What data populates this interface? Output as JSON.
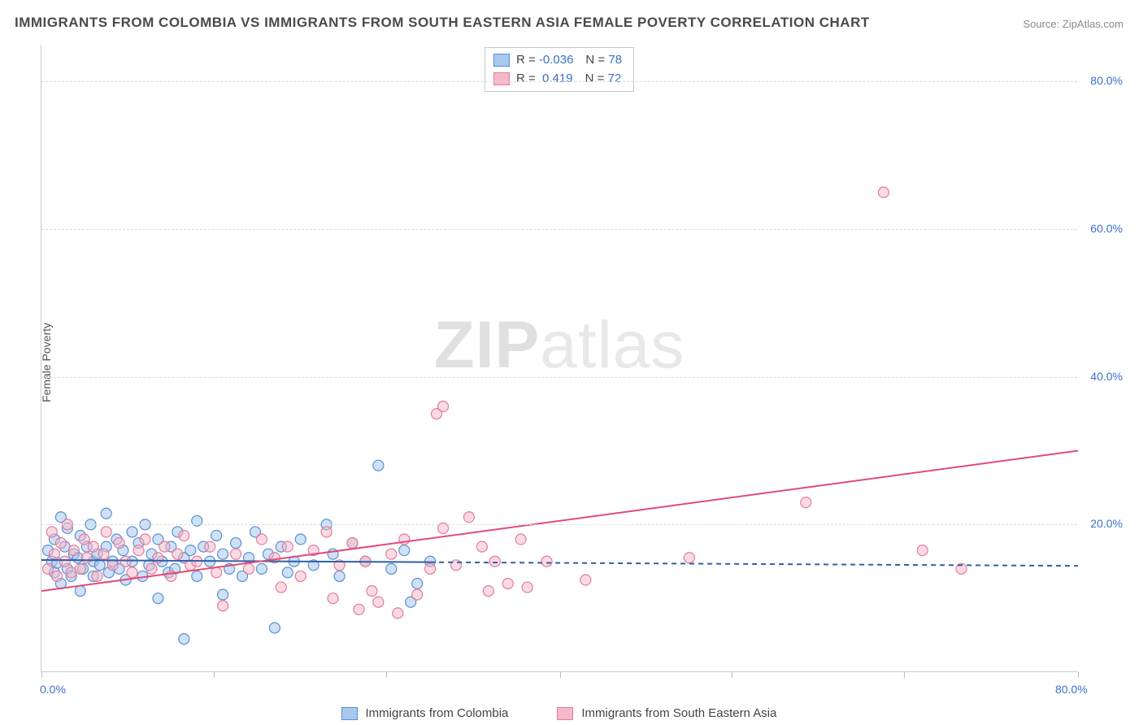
{
  "title": "IMMIGRANTS FROM COLOMBIA VS IMMIGRANTS FROM SOUTH EASTERN ASIA FEMALE POVERTY CORRELATION CHART",
  "source_prefix": "Source: ",
  "source_name": "ZipAtlas.com",
  "ylabel": "Female Poverty",
  "watermark_bold": "ZIP",
  "watermark_rest": "atlas",
  "chart": {
    "type": "scatter",
    "xlim": [
      0,
      80
    ],
    "ylim": [
      0,
      85
    ],
    "x_ticks": [
      0,
      13.3,
      26.6,
      40,
      53.3,
      66.6,
      80
    ],
    "x_tick_labels_shown": {
      "0": "0.0%",
      "80": "80.0%"
    },
    "y_gridlines": [
      20,
      40,
      60,
      80
    ],
    "y_tick_labels": {
      "20": "20.0%",
      "40": "40.0%",
      "60": "60.0%",
      "80": "80.0%"
    },
    "background_color": "#ffffff",
    "grid_color": "#dcdcdc",
    "axis_color": "#cccccc",
    "tick_label_color": "#3b6fc9",
    "marker_radius": 6.5,
    "marker_stroke_width": 1.2,
    "trend_line_width": 2,
    "series": [
      {
        "name": "Immigrants from Colombia",
        "fill": "#a8c8ec",
        "fill_opacity": 0.55,
        "stroke": "#5a8fd6",
        "trend_color": "#2f5fa8",
        "trend_y_at_x0": 15.2,
        "trend_y_at_xmax": 14.4,
        "solid_until_x": 30,
        "R": "-0.036",
        "N": "78",
        "points": [
          [
            0.5,
            16.5
          ],
          [
            0.8,
            15
          ],
          [
            1,
            18
          ],
          [
            1,
            13.5
          ],
          [
            1.2,
            14.8
          ],
          [
            1.5,
            21
          ],
          [
            1.5,
            12
          ],
          [
            1.8,
            17
          ],
          [
            2,
            19.5
          ],
          [
            2,
            14
          ],
          [
            2.3,
            13
          ],
          [
            2.5,
            16
          ],
          [
            2.8,
            15.5
          ],
          [
            3,
            18.5
          ],
          [
            3,
            11
          ],
          [
            3.2,
            14
          ],
          [
            3.5,
            17
          ],
          [
            3.8,
            20
          ],
          [
            4,
            15
          ],
          [
            4,
            13
          ],
          [
            4.3,
            16
          ],
          [
            4.5,
            14.5
          ],
          [
            5,
            21.5
          ],
          [
            5,
            17
          ],
          [
            5.2,
            13.5
          ],
          [
            5.5,
            15
          ],
          [
            5.8,
            18
          ],
          [
            6,
            14
          ],
          [
            6.3,
            16.5
          ],
          [
            6.5,
            12.5
          ],
          [
            7,
            19
          ],
          [
            7,
            15
          ],
          [
            7.5,
            17.5
          ],
          [
            7.8,
            13
          ],
          [
            8,
            20
          ],
          [
            8.3,
            14.5
          ],
          [
            8.5,
            16
          ],
          [
            9,
            10
          ],
          [
            9,
            18
          ],
          [
            9.3,
            15
          ],
          [
            9.8,
            13.5
          ],
          [
            10,
            17
          ],
          [
            10.3,
            14
          ],
          [
            10.5,
            19
          ],
          [
            11,
            4.5
          ],
          [
            11,
            15.5
          ],
          [
            11.5,
            16.5
          ],
          [
            12,
            20.5
          ],
          [
            12,
            13
          ],
          [
            12.5,
            17
          ],
          [
            13,
            15
          ],
          [
            13.5,
            18.5
          ],
          [
            14,
            10.5
          ],
          [
            14,
            16
          ],
          [
            14.5,
            14
          ],
          [
            15,
            17.5
          ],
          [
            15.5,
            13
          ],
          [
            16,
            15.5
          ],
          [
            16.5,
            19
          ],
          [
            17,
            14
          ],
          [
            17.5,
            16
          ],
          [
            18,
            6
          ],
          [
            18.5,
            17
          ],
          [
            19,
            13.5
          ],
          [
            19.5,
            15
          ],
          [
            20,
            18
          ],
          [
            21,
            14.5
          ],
          [
            22,
            20
          ],
          [
            22.5,
            16
          ],
          [
            23,
            13
          ],
          [
            24,
            17.5
          ],
          [
            25,
            15
          ],
          [
            26,
            28
          ],
          [
            27,
            14
          ],
          [
            28,
            16.5
          ],
          [
            28.5,
            9.5
          ],
          [
            29,
            12
          ],
          [
            30,
            15
          ]
        ]
      },
      {
        "name": "Immigrants from South Eastern Asia",
        "fill": "#f5b8c8",
        "fill_opacity": 0.5,
        "stroke": "#e67a9a",
        "trend_color": "#e14a7a",
        "trend_y_at_x0": 11,
        "trend_y_at_xmax": 30,
        "solid_until_x": 80,
        "R": "0.419",
        "N": "72",
        "points": [
          [
            0.5,
            14
          ],
          [
            0.8,
            19
          ],
          [
            1,
            16
          ],
          [
            1.2,
            13
          ],
          [
            1.5,
            17.5
          ],
          [
            1.8,
            15
          ],
          [
            2,
            20
          ],
          [
            2.3,
            13.5
          ],
          [
            2.5,
            16.5
          ],
          [
            3,
            14
          ],
          [
            3.3,
            18
          ],
          [
            3.5,
            15.5
          ],
          [
            4,
            17
          ],
          [
            4.3,
            13
          ],
          [
            4.8,
            16
          ],
          [
            5,
            19
          ],
          [
            5.5,
            14.5
          ],
          [
            6,
            17.5
          ],
          [
            6.5,
            15
          ],
          [
            7,
            13.5
          ],
          [
            7.5,
            16.5
          ],
          [
            8,
            18
          ],
          [
            8.5,
            14
          ],
          [
            9,
            15.5
          ],
          [
            9.5,
            17
          ],
          [
            10,
            13
          ],
          [
            10.5,
            16
          ],
          [
            11,
            18.5
          ],
          [
            11.5,
            14.5
          ],
          [
            12,
            15
          ],
          [
            13,
            17
          ],
          [
            13.5,
            13.5
          ],
          [
            14,
            9
          ],
          [
            15,
            16
          ],
          [
            16,
            14
          ],
          [
            17,
            18
          ],
          [
            18,
            15.5
          ],
          [
            18.5,
            11.5
          ],
          [
            19,
            17
          ],
          [
            20,
            13
          ],
          [
            21,
            16.5
          ],
          [
            22,
            19
          ],
          [
            22.5,
            10
          ],
          [
            23,
            14.5
          ],
          [
            24,
            17.5
          ],
          [
            24.5,
            8.5
          ],
          [
            25,
            15
          ],
          [
            25.5,
            11
          ],
          [
            26,
            9.5
          ],
          [
            27,
            16
          ],
          [
            27.5,
            8
          ],
          [
            28,
            18
          ],
          [
            29,
            10.5
          ],
          [
            30,
            14
          ],
          [
            30.5,
            35
          ],
          [
            31,
            36
          ],
          [
            31,
            19.5
          ],
          [
            32,
            14.5
          ],
          [
            33,
            21
          ],
          [
            34,
            17
          ],
          [
            34.5,
            11
          ],
          [
            35,
            15
          ],
          [
            36,
            12
          ],
          [
            37,
            18
          ],
          [
            37.5,
            11.5
          ],
          [
            39,
            15
          ],
          [
            42,
            12.5
          ],
          [
            50,
            15.5
          ],
          [
            59,
            23
          ],
          [
            65,
            65
          ],
          [
            68,
            16.5
          ],
          [
            71,
            14
          ]
        ]
      }
    ]
  },
  "legend_top": {
    "r_label": "R =",
    "n_label": "N ="
  },
  "bottom_legend": {
    "items": [
      "Immigrants from Colombia",
      "Immigrants from South Eastern Asia"
    ]
  }
}
